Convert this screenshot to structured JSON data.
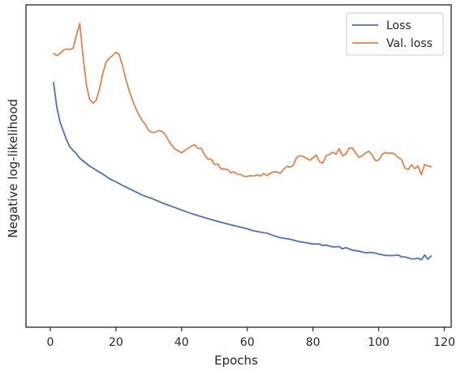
{
  "chart_data": {
    "type": "line",
    "title": "",
    "xlabel": "Epochs",
    "ylabel": "Negative log-likelihood",
    "xlim": [
      -7.4,
      122.1
    ],
    "ylim": [
      0,
      1
    ],
    "x_ticks": [
      0,
      20,
      40,
      60,
      80,
      100,
      120
    ],
    "x_tick_labels": [
      "0",
      "20",
      "40",
      "60",
      "80",
      "100",
      "120"
    ],
    "y_ticks_labeled": false,
    "grid": false,
    "legend_position": "top-right",
    "series": [
      {
        "name": "Loss",
        "color": "#4c72b0",
        "points": [
          [
            1,
            0.759
          ],
          [
            2,
            0.682
          ],
          [
            3,
            0.636
          ],
          [
            4,
            0.608
          ],
          [
            5,
            0.58
          ],
          [
            6,
            0.559
          ],
          [
            7,
            0.548
          ],
          [
            8,
            0.538
          ],
          [
            9,
            0.524
          ],
          [
            10,
            0.516
          ],
          [
            12,
            0.5
          ],
          [
            14,
            0.487
          ],
          [
            16,
            0.475
          ],
          [
            18,
            0.461
          ],
          [
            20,
            0.451
          ],
          [
            22,
            0.44
          ],
          [
            25,
            0.425
          ],
          [
            28,
            0.41
          ],
          [
            31,
            0.399
          ],
          [
            34,
            0.386
          ],
          [
            38,
            0.371
          ],
          [
            42,
            0.356
          ],
          [
            45,
            0.346
          ],
          [
            48,
            0.337
          ],
          [
            50,
            0.331
          ],
          [
            53,
            0.323
          ],
          [
            56,
            0.315
          ],
          [
            59,
            0.308
          ],
          [
            62,
            0.299
          ],
          [
            65,
            0.293
          ],
          [
            66,
            0.292
          ],
          [
            68,
            0.284
          ],
          [
            70,
            0.278
          ],
          [
            73,
            0.273
          ],
          [
            76,
            0.265
          ],
          [
            78,
            0.262
          ],
          [
            80,
            0.258
          ],
          [
            82,
            0.258
          ],
          [
            83,
            0.253
          ],
          [
            84,
            0.255
          ],
          [
            86,
            0.249
          ],
          [
            88,
            0.25
          ],
          [
            89,
            0.243
          ],
          [
            90,
            0.247
          ],
          [
            92,
            0.239
          ],
          [
            94,
            0.236
          ],
          [
            96,
            0.231
          ],
          [
            98,
            0.232
          ],
          [
            100,
            0.227
          ],
          [
            102,
            0.223
          ],
          [
            104,
            0.222
          ],
          [
            106,
            0.224
          ],
          [
            107,
            0.218
          ],
          [
            108,
            0.218
          ],
          [
            110,
            0.212
          ],
          [
            111,
            0.212
          ],
          [
            112,
            0.214
          ],
          [
            113,
            0.209
          ],
          [
            114,
            0.224
          ],
          [
            115,
            0.211
          ],
          [
            116,
            0.221
          ]
        ]
      },
      {
        "name": "Val. loss",
        "color": "#dd8452",
        "points": [
          [
            1,
            0.849
          ],
          [
            2,
            0.843
          ],
          [
            3,
            0.849
          ],
          [
            4,
            0.86
          ],
          [
            5,
            0.863
          ],
          [
            6,
            0.862
          ],
          [
            7,
            0.866
          ],
          [
            8,
            0.907
          ],
          [
            9,
            0.942
          ],
          [
            10,
            0.838
          ],
          [
            11,
            0.752
          ],
          [
            12,
            0.706
          ],
          [
            13,
            0.695
          ],
          [
            14,
            0.704
          ],
          [
            15,
            0.74
          ],
          [
            16,
            0.787
          ],
          [
            17,
            0.822
          ],
          [
            18,
            0.835
          ],
          [
            19,
            0.843
          ],
          [
            20,
            0.853
          ],
          [
            21,
            0.846
          ],
          [
            22,
            0.811
          ],
          [
            23,
            0.77
          ],
          [
            24,
            0.735
          ],
          [
            25,
            0.705
          ],
          [
            26,
            0.68
          ],
          [
            27,
            0.658
          ],
          [
            28,
            0.641
          ],
          [
            29,
            0.628
          ],
          [
            30,
            0.61
          ],
          [
            31,
            0.604
          ],
          [
            32,
            0.605
          ],
          [
            33,
            0.61
          ],
          [
            34,
            0.608
          ],
          [
            35,
            0.598
          ],
          [
            36,
            0.58
          ],
          [
            37,
            0.564
          ],
          [
            38,
            0.553
          ],
          [
            39,
            0.547
          ],
          [
            40,
            0.541
          ],
          [
            41,
            0.549
          ],
          [
            42,
            0.555
          ],
          [
            43,
            0.562
          ],
          [
            44,
            0.566
          ],
          [
            45,
            0.555
          ],
          [
            46,
            0.555
          ],
          [
            47,
            0.534
          ],
          [
            48,
            0.522
          ],
          [
            49,
            0.521
          ],
          [
            50,
            0.505
          ],
          [
            51,
            0.507
          ],
          [
            52,
            0.491
          ],
          [
            53,
            0.491
          ],
          [
            54,
            0.489
          ],
          [
            55,
            0.479
          ],
          [
            56,
            0.482
          ],
          [
            57,
            0.474
          ],
          [
            58,
            0.474
          ],
          [
            59,
            0.468
          ],
          [
            60,
            0.468
          ],
          [
            61,
            0.47
          ],
          [
            62,
            0.469
          ],
          [
            63,
            0.473
          ],
          [
            64,
            0.469
          ],
          [
            65,
            0.477
          ],
          [
            66,
            0.47
          ],
          [
            67,
            0.478
          ],
          [
            68,
            0.482
          ],
          [
            69,
            0.482
          ],
          [
            70,
            0.477
          ],
          [
            71,
            0.489
          ],
          [
            72,
            0.499
          ],
          [
            73,
            0.497
          ],
          [
            74,
            0.502
          ],
          [
            75,
            0.526
          ],
          [
            76,
            0.532
          ],
          [
            77,
            0.53
          ],
          [
            78,
            0.524
          ],
          [
            79,
            0.518
          ],
          [
            80,
            0.525
          ],
          [
            81,
            0.534
          ],
          [
            82,
            0.513
          ],
          [
            83,
            0.509
          ],
          [
            84,
            0.532
          ],
          [
            85,
            0.536
          ],
          [
            86,
            0.543
          ],
          [
            87,
            0.537
          ],
          [
            88,
            0.554
          ],
          [
            89,
            0.531
          ],
          [
            90,
            0.537
          ],
          [
            91,
            0.555
          ],
          [
            92,
            0.556
          ],
          [
            93,
            0.541
          ],
          [
            94,
            0.527
          ],
          [
            95,
            0.532
          ],
          [
            96,
            0.54
          ],
          [
            97,
            0.546
          ],
          [
            98,
            0.535
          ],
          [
            99,
            0.517
          ],
          [
            100,
            0.518
          ],
          [
            101,
            0.535
          ],
          [
            102,
            0.542
          ],
          [
            103,
            0.539
          ],
          [
            104,
            0.541
          ],
          [
            105,
            0.536
          ],
          [
            106,
            0.526
          ],
          [
            107,
            0.52
          ],
          [
            108,
            0.494
          ],
          [
            109,
            0.489
          ],
          [
            110,
            0.504
          ],
          [
            111,
            0.492
          ],
          [
            112,
            0.5
          ],
          [
            113,
            0.473
          ],
          [
            114,
            0.505
          ],
          [
            115,
            0.5
          ],
          [
            116,
            0.498
          ]
        ]
      }
    ]
  }
}
